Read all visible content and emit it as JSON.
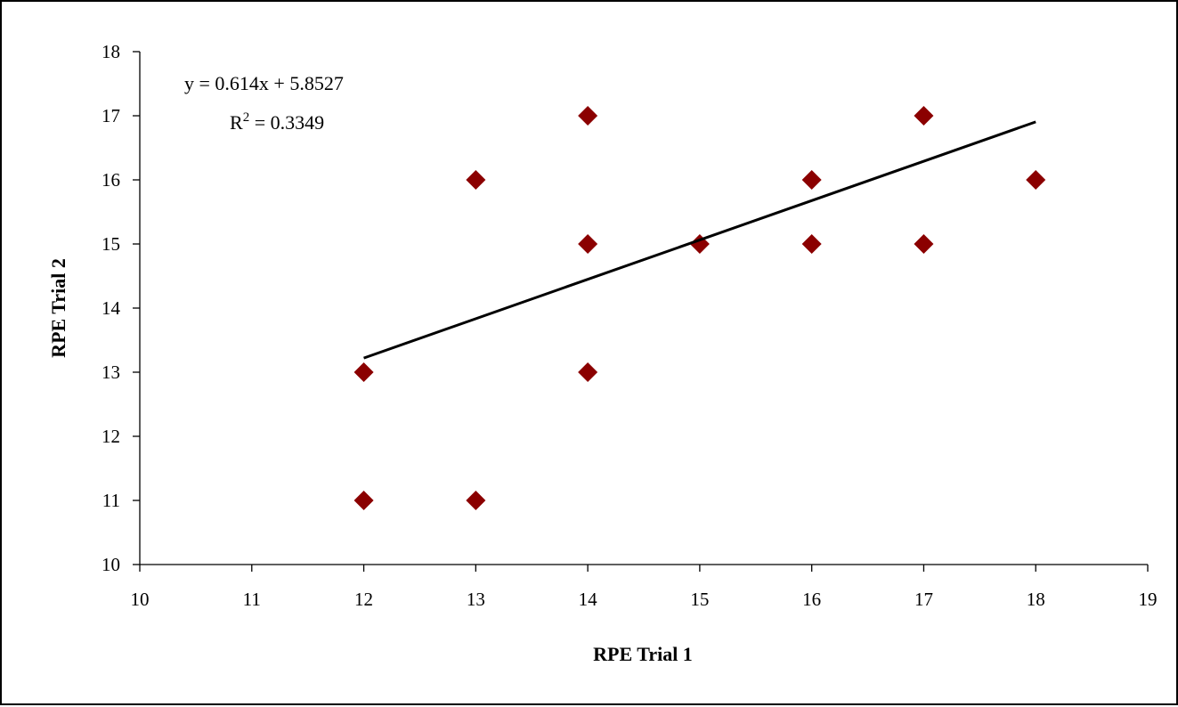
{
  "chart_data": {
    "type": "scatter",
    "title": "",
    "xlabel": "RPE Trial 1",
    "ylabel": "RPE Trial 2",
    "xlim": [
      10,
      19
    ],
    "ylim": [
      10,
      18
    ],
    "xticks": [
      "10",
      "11",
      "12",
      "13",
      "14",
      "15",
      "16",
      "17",
      "18",
      "19"
    ],
    "yticks": [
      "10",
      "11",
      "12",
      "13",
      "14",
      "15",
      "16",
      "17",
      "18"
    ],
    "grid": false,
    "legend": "none",
    "series": [
      {
        "marker": "diamond",
        "color": "#8B0000",
        "points": [
          {
            "x": 12,
            "y": 13
          },
          {
            "x": 12,
            "y": 11
          },
          {
            "x": 13,
            "y": 16
          },
          {
            "x": 13,
            "y": 11
          },
          {
            "x": 14,
            "y": 17
          },
          {
            "x": 14,
            "y": 15
          },
          {
            "x": 14,
            "y": 13
          },
          {
            "x": 15,
            "y": 15
          },
          {
            "x": 16,
            "y": 16
          },
          {
            "x": 16,
            "y": 15
          },
          {
            "x": 17,
            "y": 17
          },
          {
            "x": 17,
            "y": 15
          },
          {
            "x": 18,
            "y": 16
          }
        ]
      }
    ],
    "trendline": {
      "type": "linear",
      "slope": 0.614,
      "intercept": 5.8527,
      "x_range": [
        12,
        18
      ],
      "color": "#000000",
      "equation": "y = 0.614x + 5.8527",
      "r_squared_prefix": "R",
      "r_squared_superscript": "2",
      "r_squared_value": " = 0.3349"
    }
  }
}
